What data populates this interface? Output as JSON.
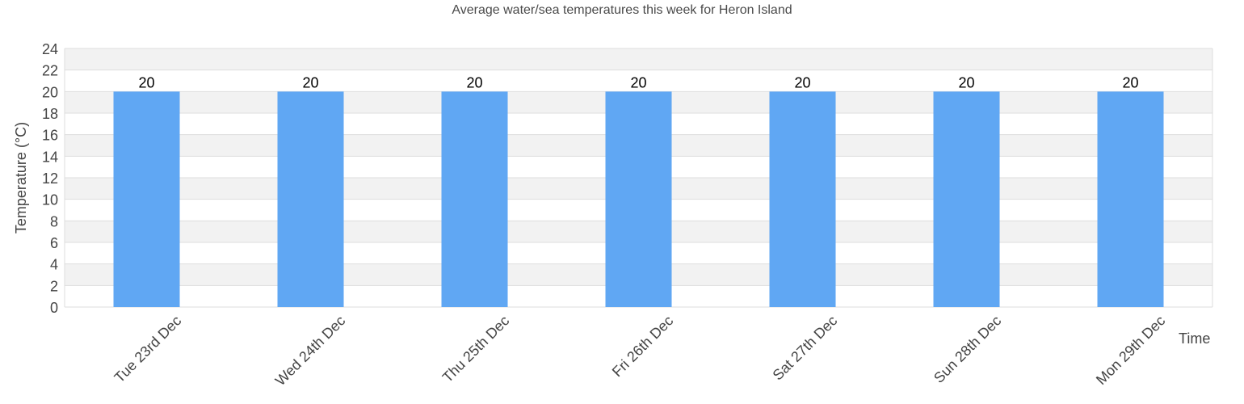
{
  "chart_data": {
    "type": "bar",
    "title": "Average water/sea temperatures this week for Heron Island",
    "xlabel": "Time",
    "ylabel": "Temperature (°C)",
    "categories": [
      "Tue 23rd Dec",
      "Wed 24th Dec",
      "Thu 25th Dec",
      "Fri 26th Dec",
      "Sat 27th Dec",
      "Sun 28th Dec",
      "Mon 29th Dec"
    ],
    "values": [
      20,
      20,
      20,
      20,
      20,
      20,
      20
    ],
    "ylim": [
      0,
      24
    ],
    "yticks": [
      0,
      2,
      4,
      6,
      8,
      10,
      12,
      14,
      16,
      18,
      20,
      22,
      24
    ],
    "grid": true,
    "legend": null,
    "colors": {
      "bar": "#60a7f3",
      "band_alt": "#f2f2f2",
      "gridline": "#dddddd",
      "text": "#444444",
      "bar_label": "#000000"
    }
  }
}
